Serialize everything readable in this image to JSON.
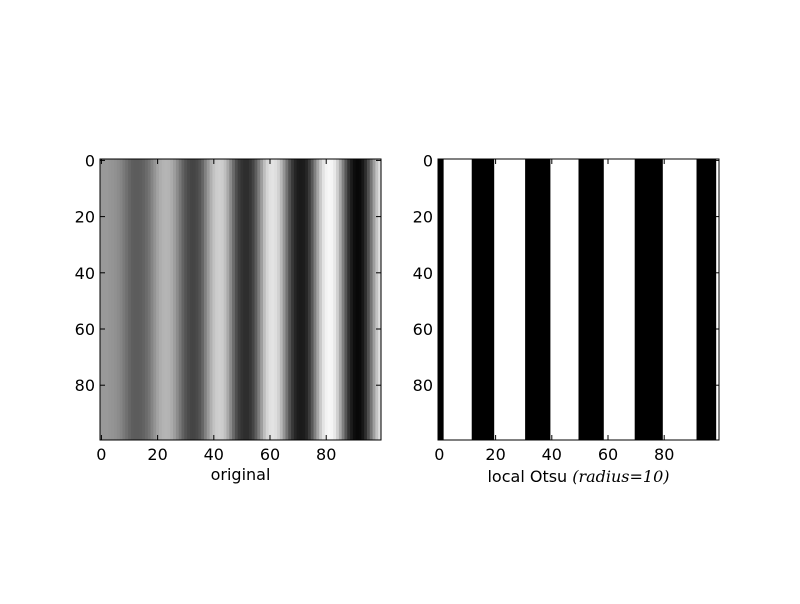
{
  "chart_data": [
    {
      "type": "heatmap",
      "title": "",
      "xlabel": "original",
      "ylabel": "",
      "colormap": "gray",
      "image_shape": [
        100,
        100
      ],
      "xlim": [
        0,
        100
      ],
      "ylim": [
        100,
        0
      ],
      "xticks": [
        0,
        20,
        40,
        60,
        80
      ],
      "yticks": [
        0,
        20,
        40,
        60,
        80
      ],
      "column_intensity": [
        0.6,
        0.6,
        0.6,
        0.59,
        0.58,
        0.57,
        0.55,
        0.52,
        0.48,
        0.44,
        0.4,
        0.37,
        0.36,
        0.36,
        0.37,
        0.39,
        0.42,
        0.46,
        0.52,
        0.58,
        0.64,
        0.68,
        0.7,
        0.71,
        0.7,
        0.67,
        0.62,
        0.55,
        0.47,
        0.39,
        0.33,
        0.29,
        0.27,
        0.27,
        0.29,
        0.33,
        0.4,
        0.5,
        0.6,
        0.69,
        0.76,
        0.8,
        0.81,
        0.8,
        0.75,
        0.66,
        0.54,
        0.42,
        0.31,
        0.24,
        0.2,
        0.18,
        0.18,
        0.21,
        0.27,
        0.37,
        0.49,
        0.62,
        0.74,
        0.83,
        0.88,
        0.89,
        0.87,
        0.82,
        0.72,
        0.59,
        0.45,
        0.32,
        0.22,
        0.15,
        0.11,
        0.1,
        0.11,
        0.15,
        0.23,
        0.35,
        0.5,
        0.65,
        0.79,
        0.89,
        0.95,
        0.97,
        0.96,
        0.91,
        0.81,
        0.67,
        0.5,
        0.34,
        0.2,
        0.11,
        0.05,
        0.03,
        0.04,
        0.09,
        0.18,
        0.31,
        0.46,
        0.62,
        0.76,
        0.87
      ]
    },
    {
      "type": "heatmap",
      "title": "",
      "xlabel_text": "local Otsu",
      "xlabel_math": "(radius=10)",
      "ylabel": "",
      "colormap": "binary",
      "image_shape": [
        100,
        100
      ],
      "xlim": [
        0,
        100
      ],
      "ylim": [
        100,
        0
      ],
      "xticks": [
        0,
        20,
        40,
        60,
        80
      ],
      "yticks": [
        0,
        20,
        40,
        60,
        80
      ],
      "black_column_ranges": [
        [
          0,
          2
        ],
        [
          12,
          20
        ],
        [
          31,
          40
        ],
        [
          50,
          59
        ],
        [
          70,
          80
        ],
        [
          92,
          99
        ]
      ]
    }
  ]
}
